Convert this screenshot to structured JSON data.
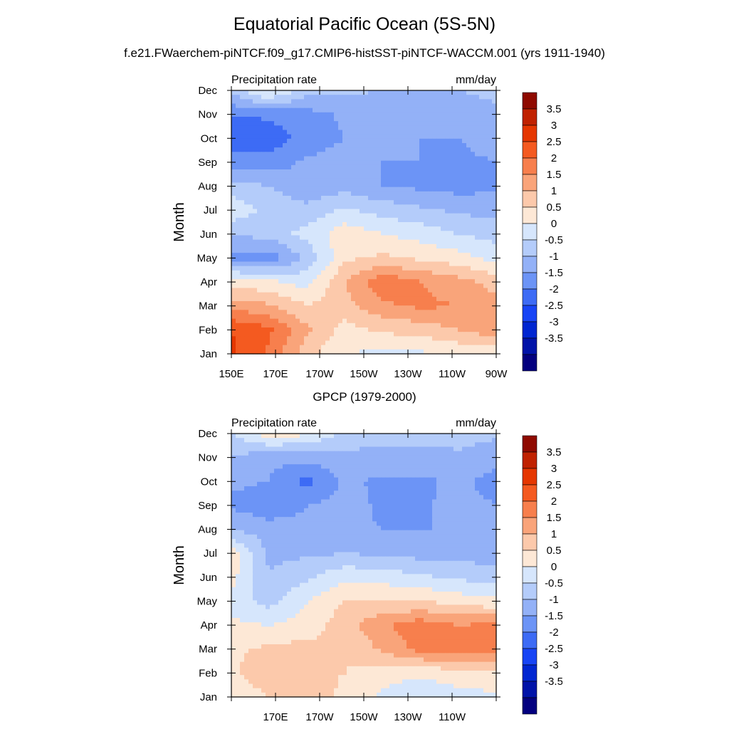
{
  "title": "Equatorial Pacific Ocean (5S-5N)",
  "subtitle": "f.e21.FWaerchem-piNTCF.f09_g17.CMIP6-histSST-piNTCF-WACCM.001 (yrs 1911-1940)",
  "colors": [
    "#03007f",
    "#0013a8",
    "#0026d1",
    "#1744f5",
    "#3d6bf5",
    "#6c94f6",
    "#93b1f7",
    "#b4ccfa",
    "#d6e6fc",
    "#fde8d6",
    "#fcc9ab",
    "#f9a47a",
    "#f77f4d",
    "#f45a20",
    "#e53700",
    "#c02200",
    "#8f0a00"
  ],
  "chart_data": [
    {
      "type": "contour",
      "name": "model",
      "left_label": "Precipitation rate",
      "right_label": "mm/day",
      "ylabel": "Month",
      "xlabel": "",
      "x_ticks": [
        "150E",
        "170E",
        "170W",
        "150W",
        "130W",
        "110W",
        "90W"
      ],
      "y_ticks": [
        "Jan",
        "Feb",
        "Mar",
        "Apr",
        "May",
        "Jun",
        "Jul",
        "Aug",
        "Sep",
        "Oct",
        "Nov",
        "Dec"
      ],
      "colorbar_labels": [
        "3.5",
        "3",
        "2.5",
        "2",
        "1.5",
        "1",
        "0.5",
        "0",
        "-0.5",
        "-1",
        "-1.5",
        "-2",
        "-2.5",
        "-3",
        "-3.5"
      ],
      "z": [
        [
          3.1,
          2.4,
          1.2,
          0.5,
          0.4,
          0.4,
          0.6,
          0.7
        ],
        [
          3.0,
          2.6,
          1.6,
          0.8,
          1.1,
          1.2,
          1.5,
          1.8
        ],
        [
          1.8,
          1.6,
          1.0,
          1.3,
          1.9,
          2.1,
          2.0,
          1.7
        ],
        [
          0.8,
          0.6,
          0.3,
          1.5,
          2.4,
          2.0,
          1.7,
          1.3
        ],
        [
          -1.1,
          -1.3,
          -0.4,
          0.9,
          1.1,
          0.9,
          0.7,
          0.3
        ],
        [
          -0.5,
          -0.3,
          0.2,
          0.8,
          0.5,
          0.3,
          0.0,
          -0.2
        ],
        [
          0.4,
          -0.2,
          -0.4,
          0.1,
          -0.2,
          -0.4,
          -0.6,
          -0.7
        ],
        [
          -0.3,
          -0.5,
          -0.8,
          -0.7,
          -1.0,
          -1.1,
          -1.2,
          -1.1
        ],
        [
          -1.2,
          -1.3,
          -0.9,
          -0.8,
          -1.0,
          -1.0,
          -1.1,
          -1.0
        ],
        [
          -1.9,
          -1.8,
          -1.3,
          -1.0,
          -1.0,
          -1.0,
          -1.0,
          -0.8
        ],
        [
          -1.5,
          -1.4,
          -1.2,
          -0.9,
          -0.8,
          -0.8,
          -0.7,
          -0.6
        ],
        [
          -0.3,
          0.7,
          -0.3,
          -0.4,
          -0.5,
          -0.5,
          -0.5,
          -0.4
        ]
      ]
    },
    {
      "type": "contour",
      "name": "obs",
      "title": "GPCP (1979-2000)",
      "left_label": "Precipitation rate",
      "right_label": "mm/day",
      "ylabel": "Month",
      "xlabel": "",
      "x_ticks": [
        "",
        "170E",
        "170W",
        "150W",
        "130W",
        "110W",
        ""
      ],
      "y_ticks": [
        "Jan",
        "Feb",
        "Mar",
        "Apr",
        "May",
        "Jun",
        "Jul",
        "Aug",
        "Sep",
        "Oct",
        "Nov",
        "Dec"
      ],
      "colorbar_labels": [
        "3.5",
        "3",
        "2.5",
        "2",
        "1.5",
        "1",
        "0.5",
        "0",
        "-0.5",
        "-1",
        "-1.5",
        "-2",
        "-2.5",
        "-3",
        "-3.5"
      ],
      "z": [
        [
          0.6,
          1.0,
          1.5,
          0.8,
          0.4,
          0.1,
          0.3,
          0.4
        ],
        [
          0.9,
          1.4,
          1.2,
          1.0,
          0.7,
          0.6,
          0.8,
          0.9
        ],
        [
          0.9,
          1.1,
          1.2,
          1.0,
          1.6,
          2.2,
          2.3,
          2.1
        ],
        [
          0.6,
          0.5,
          0.7,
          1.3,
          1.9,
          2.3,
          2.0,
          2.1
        ],
        [
          0.3,
          -0.2,
          0.5,
          1.0,
          1.0,
          1.0,
          0.8,
          0.6
        ],
        [
          0.7,
          -0.5,
          -0.1,
          0.4,
          0.3,
          0.1,
          -0.1,
          -0.2
        ],
        [
          0.8,
          -0.6,
          -0.6,
          -0.5,
          -0.6,
          -0.7,
          -0.7,
          -0.8
        ],
        [
          -0.5,
          -0.8,
          -0.9,
          -0.9,
          -1.0,
          -1.0,
          -1.0,
          -1.0
        ],
        [
          -1.1,
          -1.3,
          -1.0,
          -0.8,
          -1.1,
          -1.1,
          -0.8,
          -1.0
        ],
        [
          -0.9,
          -1.0,
          -1.7,
          -0.9,
          -1.1,
          -1.1,
          -0.9,
          -1.2
        ],
        [
          -0.5,
          -0.9,
          -0.8,
          -0.6,
          -0.7,
          -0.7,
          -0.6,
          -0.8
        ],
        [
          0.0,
          0.8,
          0.6,
          -0.2,
          -0.3,
          -0.3,
          -0.3,
          -0.4
        ]
      ]
    }
  ]
}
